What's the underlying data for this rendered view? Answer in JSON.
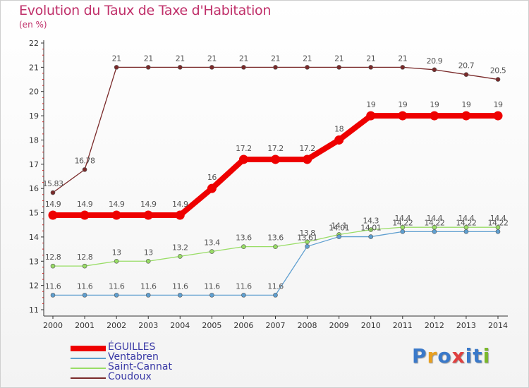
{
  "title": "Evolution du Taux de Taxe d'Habitation",
  "subtitle": "(en %)",
  "logo": {
    "text": "Proxiti",
    "letter_colors": [
      "#3a79c9",
      "#e8a020",
      "#3a79c9",
      "#e04040",
      "#3a79c9",
      "#3a79c9",
      "#7ab82a"
    ]
  },
  "chart_data": {
    "type": "line",
    "title": "Evolution du Taux de Taxe d'Habitation",
    "ylabel": "(en %)",
    "xlabel": "",
    "x": [
      "2000",
      "2001",
      "2002",
      "2003",
      "2004",
      "2005",
      "2006",
      "2007",
      "2008",
      "2009",
      "2010",
      "2011",
      "2012",
      "2013",
      "2014"
    ],
    "ylim": [
      11,
      22
    ],
    "yticks": [
      "11",
      "12",
      "13",
      "14",
      "15",
      "16",
      "17",
      "18",
      "19",
      "20",
      "21",
      "22"
    ],
    "grid": "none",
    "legend_position": "bottom-left",
    "series": [
      {
        "name": "Coudoux",
        "color": "#7a2a2a",
        "values": [
          15.83,
          16.78,
          21,
          21,
          21,
          21,
          21,
          21,
          21,
          21,
          21,
          21,
          20.9,
          20.7,
          20.5
        ],
        "labels": [
          "15.83",
          "16.78",
          "21",
          "21",
          "21",
          "21",
          "21",
          "21",
          "21",
          "21",
          "21",
          "21",
          "20.9",
          "20.7",
          "20.5"
        ]
      },
      {
        "name": "Saint-Cannat",
        "color": "#99dd66",
        "values": [
          12.8,
          12.8,
          13,
          13,
          13.2,
          13.4,
          13.6,
          13.6,
          13.8,
          14.1,
          14.3,
          14.4,
          14.4,
          14.4,
          14.4
        ],
        "labels": [
          "12.8",
          "12.8",
          "13",
          "13",
          "13.2",
          "13.4",
          "13.6",
          "13.6",
          "13.8",
          "14.1",
          "14.3",
          "14.4",
          "14.4",
          "14.4",
          "14.4"
        ]
      },
      {
        "name": "Ventabren",
        "color": "#5f9fd0",
        "values": [
          11.6,
          11.6,
          11.6,
          11.6,
          11.6,
          11.6,
          11.6,
          11.6,
          13.61,
          14.01,
          14.01,
          14.22,
          14.22,
          14.22,
          14.22
        ],
        "labels": [
          "11.6",
          "11.6",
          "11.6",
          "11.6",
          "11.6",
          "11.6",
          "11.6",
          "11.6",
          "13.61",
          "14.01",
          "14.01",
          "14.22",
          "14.22",
          "14.22",
          "14.22"
        ]
      },
      {
        "name": "ÉGUILLES",
        "color": "#ee0000",
        "values": [
          14.9,
          14.9,
          14.9,
          14.9,
          14.9,
          16,
          17.2,
          17.2,
          17.2,
          18,
          19,
          19,
          19,
          19,
          19
        ],
        "labels": [
          "14.9",
          "14.9",
          "14.9",
          "14.9",
          "14.9",
          "16",
          "17.2",
          "17.2",
          "17.2",
          "18",
          "19",
          "19",
          "19",
          "19",
          "19"
        ]
      }
    ],
    "legend": [
      "ÉGUILLES",
      "Ventabren",
      "Saint-Cannat",
      "Coudoux"
    ]
  }
}
